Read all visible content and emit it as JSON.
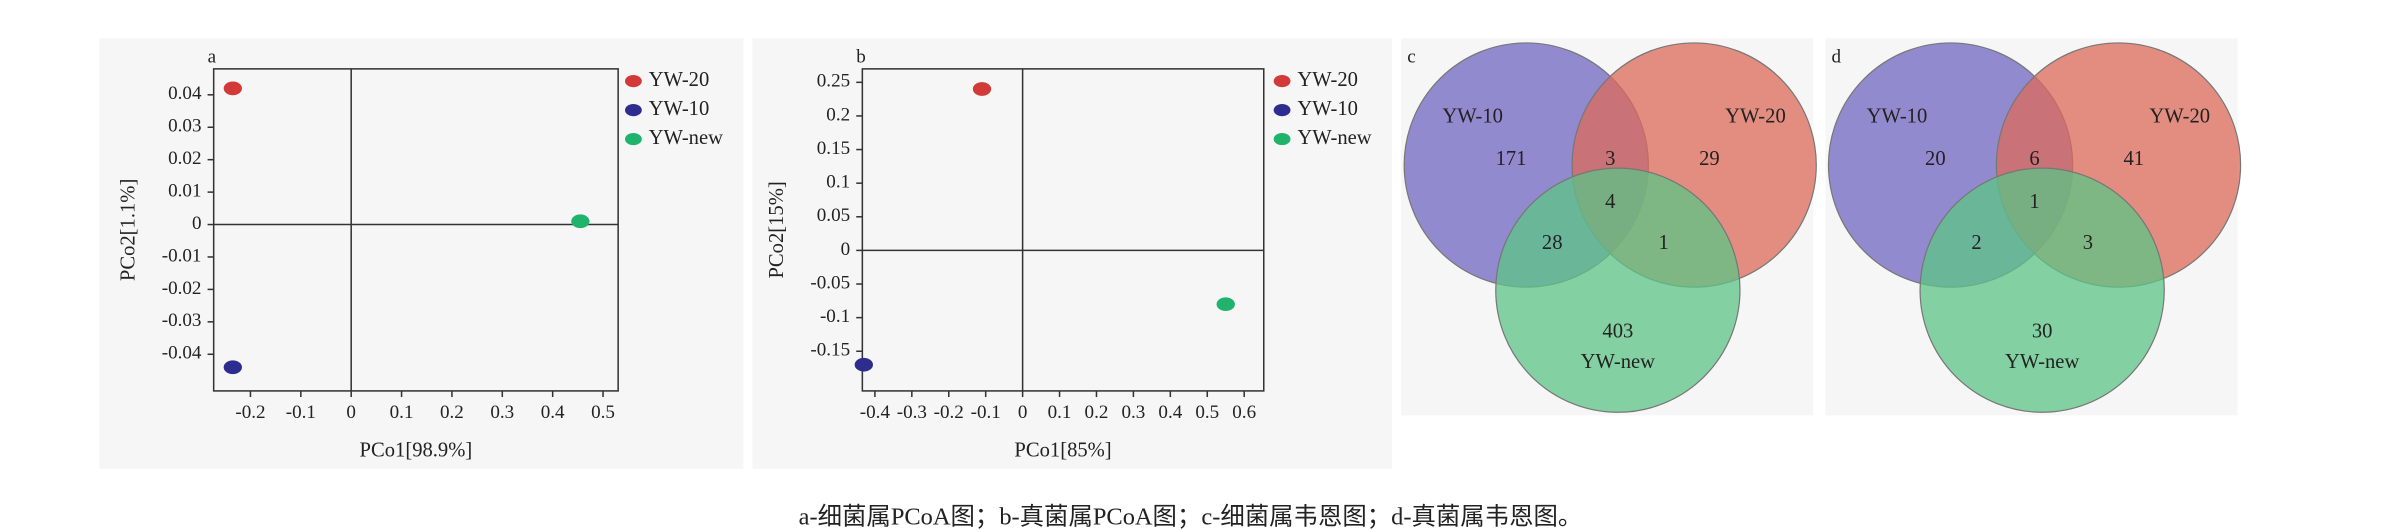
{
  "chart_data": [
    {
      "type": "scatter",
      "panel": "a",
      "xlabel": "PCo1[98.9%]",
      "ylabel": "PCo2[1.1%]",
      "xlim": [
        -0.273,
        0.53
      ],
      "ylim": [
        -0.0513,
        0.048
      ],
      "xticks": [
        -0.2,
        -0.1,
        0,
        0.1,
        0.2,
        0.3,
        0.4,
        0.5
      ],
      "yticks": [
        -0.04,
        -0.03,
        -0.02,
        -0.01,
        0,
        0.01,
        0.02,
        0.03,
        0.04
      ],
      "series": [
        {
          "name": "YW-20",
          "color": "#d23a3a",
          "x": [
            -0.235
          ],
          "values": [
            0.042
          ]
        },
        {
          "name": "YW-10",
          "color": "#2d2d90",
          "x": [
            -0.235
          ],
          "values": [
            -0.044
          ]
        },
        {
          "name": "YW-new",
          "color": "#1fb36b",
          "x": [
            0.455
          ],
          "values": [
            0.001
          ]
        }
      ]
    },
    {
      "type": "scatter",
      "panel": "b",
      "xlabel": "PCo1[85%]",
      "ylabel": "PCo2[15%]",
      "xlim": [
        -0.434,
        0.653
      ],
      "ylim": [
        -0.209,
        0.27
      ],
      "xticks": [
        -0.4,
        -0.3,
        -0.2,
        -0.1,
        0,
        0.1,
        0.2,
        0.3,
        0.4,
        0.5,
        0.6
      ],
      "yticks": [
        -0.15,
        -0.1,
        -0.05,
        0,
        0.05,
        0.1,
        0.15,
        0.2,
        0.25
      ],
      "series": [
        {
          "name": "YW-20",
          "color": "#d23a3a",
          "x": [
            -0.11
          ],
          "values": [
            0.24
          ]
        },
        {
          "name": "YW-10",
          "color": "#2d2d90",
          "x": [
            -0.43
          ],
          "values": [
            -0.17
          ]
        },
        {
          "name": "YW-new",
          "color": "#1fb36b",
          "x": [
            0.55
          ],
          "values": [
            -0.08
          ]
        }
      ]
    },
    {
      "type": "venn",
      "panel": "c",
      "sets": [
        {
          "name": "YW-10",
          "color": "#6f66c0"
        },
        {
          "name": "YW-20",
          "color": "#dc6a5a"
        },
        {
          "name": "YW-new",
          "color": "#5cc486"
        }
      ],
      "values": [
        171,
        3,
        29,
        4,
        28,
        1,
        403
      ]
    },
    {
      "type": "venn",
      "panel": "d",
      "sets": [
        {
          "name": "YW-10",
          "color": "#6f66c0"
        },
        {
          "name": "YW-20",
          "color": "#dc6a5a"
        },
        {
          "name": "YW-new",
          "color": "#5cc486"
        }
      ],
      "values": [
        20,
        6,
        41,
        1,
        2,
        3,
        30
      ]
    }
  ],
  "caption": "a-细菌属PCoA图；b-真菌属PCoA图；c-细菌属韦恩图；d-真菌属韦恩图。"
}
